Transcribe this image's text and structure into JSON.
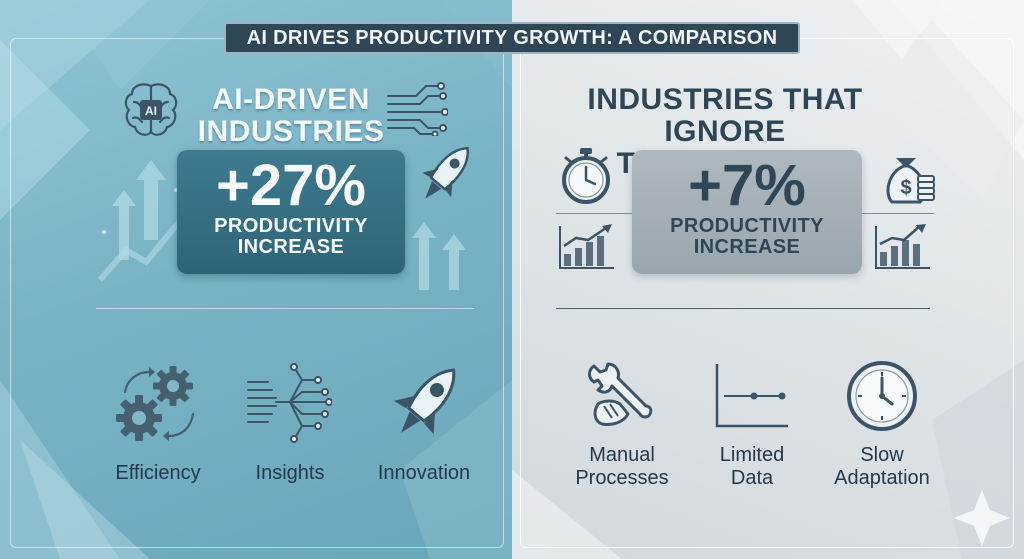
{
  "title": "AI DRIVES PRODUCTIVITY GROWTH: A COMPARISON",
  "left": {
    "heading_line1": "AI-DRIVEN",
    "heading_line2": "INDUSTRIES",
    "stat_value": "+27%",
    "stat_label_line1": "PRODUCTIVITY",
    "stat_label_line2": "INCREASE",
    "brain_chip_text": "AI",
    "features": [
      {
        "label": "Efficiency",
        "icon": "gears-icon"
      },
      {
        "label": "Insights",
        "icon": "circuit-network-icon"
      },
      {
        "label": "Innovation",
        "icon": "rocket-icon"
      }
    ]
  },
  "right": {
    "heading_line1": "INDUSTRIES THAT",
    "heading_line2": "IGNORE TECHNOLOGY",
    "stat_value": "+7%",
    "stat_label_line1": "PRODUCTIVITY",
    "stat_label_line2": "INCREASE",
    "money_bag_symbol": "$",
    "features": [
      {
        "label_line1": "Manual",
        "label_line2": "Processes",
        "icon": "wrench-hand-icon"
      },
      {
        "label_line1": "Limited",
        "label_line2": "Data",
        "icon": "flat-line-chart-icon"
      },
      {
        "label_line1": "Slow",
        "label_line2": "Adaptation",
        "icon": "clock-icon"
      }
    ]
  },
  "colors": {
    "left_panel": "#7ab4c7",
    "right_panel": "#e1e6e9",
    "title_banner": "#2f4656",
    "left_stat_box": "#356e82",
    "right_stat_box": "#a4afb7",
    "dark_text": "#2f4656",
    "accent_dark": "#3b5566"
  }
}
